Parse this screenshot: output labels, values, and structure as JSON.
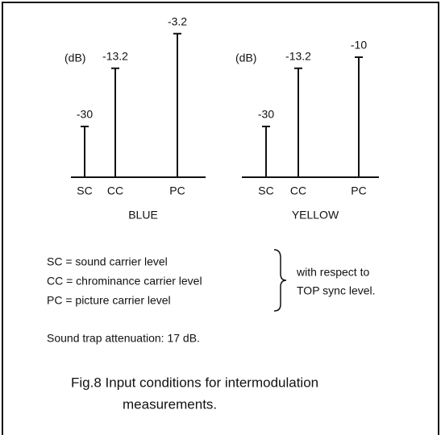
{
  "chart_data": [
    {
      "type": "stem",
      "unit": "(dB)",
      "categories": [
        "SC",
        "CC",
        "PC"
      ],
      "values": [
        -30,
        -13.2,
        -3.2
      ],
      "xlabel": "BLUE",
      "color": "#111111"
    },
    {
      "type": "stem",
      "unit": "(dB)",
      "categories": [
        "SC",
        "CC",
        "PC"
      ],
      "values": [
        -30,
        -13.2,
        -10
      ],
      "xlabel": "YELLOW",
      "color": "#111111"
    }
  ],
  "legend": [
    "SC = sound carrier level",
    "CC = chrominance carrier level",
    "PC = picture carrier level"
  ],
  "legend_note": [
    "with respect to",
    "TOP sync level."
  ],
  "note": "Sound trap attenuation: 17 dB.",
  "caption": [
    "Fig.8  Input conditions for intermodulation",
    "measurements."
  ]
}
